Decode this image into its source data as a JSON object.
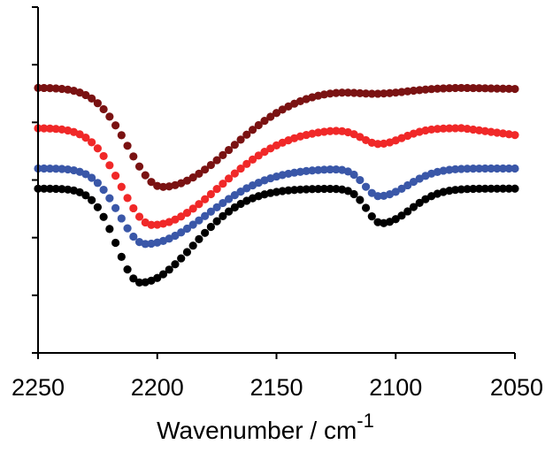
{
  "chart_data": {
    "type": "scatter",
    "xlabel": "Wavenumber / cm",
    "xlabel_superscript": "-1",
    "ylabel": "",
    "xlim": [
      2250,
      2050
    ],
    "x_reversed": true,
    "ylim": [
      0,
      6
    ],
    "x_ticks": [
      2250,
      2200,
      2150,
      2100,
      2050
    ],
    "x_tick_labels": [
      "2250",
      "2200",
      "2150",
      "2100",
      "2050"
    ],
    "y_ticks": [
      0,
      1,
      2,
      3,
      4,
      5,
      6
    ],
    "y_tick_labels_shown": false,
    "grid": false,
    "legend": "none",
    "x_step": 2.5,
    "series": [
      {
        "color": "#7a1212",
        "profile": {
          "base": 4.6,
          "end_value": 4.6,
          "end_taper": 0.02,
          "bands": [
            {
              "center": 2198,
              "depth": 1.72,
              "width_left": 14,
              "width_right": 29
            },
            {
              "center": 2107,
              "depth": 0.09,
              "width_left": 10,
              "width_right": 13
            }
          ]
        }
      },
      {
        "color": "#f02828",
        "profile": {
          "base": 3.9,
          "end_value": 3.9,
          "end_taper": 0.12,
          "bands": [
            {
              "center": 2202,
              "depth": 1.68,
              "width_left": 13,
              "width_right": 28
            },
            {
              "center": 2107,
              "depth": 0.27,
              "width_left": 7,
              "width_right": 10
            }
          ]
        }
      },
      {
        "color": "#3a57a8",
        "profile": {
          "base": 3.2,
          "end_value": 3.2,
          "end_taper": 0,
          "bands": [
            {
              "center": 2205,
              "depth": 1.31,
              "width_left": 11,
              "width_right": 26
            },
            {
              "center": 2107,
              "depth": 0.48,
              "width_left": 6,
              "width_right": 12
            }
          ]
        }
      },
      {
        "color": "#000000",
        "profile": {
          "base": 2.85,
          "end_value": 2.85,
          "end_taper": 0,
          "bands": [
            {
              "center": 2207,
              "depth": 1.63,
              "width_left": 10,
              "width_right": 22
            },
            {
              "center": 2106,
              "depth": 0.6,
              "width_left": 6,
              "width_right": 12
            }
          ]
        }
      }
    ]
  }
}
